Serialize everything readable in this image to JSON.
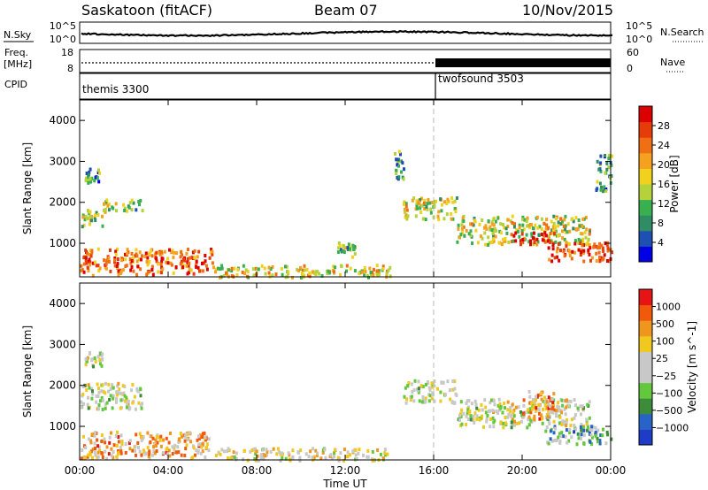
{
  "header": {
    "station": "Saskatoon (fitACF)",
    "beam": "Beam 07",
    "date": "10/Nov/2015"
  },
  "top_panels": {
    "nsky_label": "N.Sky",
    "nsky_ticks": [
      "10^5",
      "10^0"
    ],
    "nsearch_label": "N.Search",
    "freq_label_1": "Freq.",
    "freq_label_2": "[MHz]",
    "freq_ticks": [
      "18",
      "8"
    ],
    "nave_label": "Nave",
    "nave_ticks": [
      "60",
      "0"
    ],
    "cpid_label": "CPID",
    "cpid_programs": [
      {
        "name": "themis 3300",
        "start_hour": 0
      },
      {
        "name": "twofsound 3503",
        "start_hour": 16
      }
    ]
  },
  "colors": {
    "power_scale": [
      "#0000e6",
      "#1e50b4",
      "#2f8c64",
      "#38b050",
      "#b4d23c",
      "#f0d21e",
      "#f5a01e",
      "#f06e14",
      "#e63c0a",
      "#dc0000"
    ],
    "velocity_scale": [
      "#1e3cc8",
      "#2864c8",
      "#3c8c3c",
      "#64c83c",
      "#c8c8c8",
      "#c8c8c8",
      "#f0c81e",
      "#f0961e",
      "#f05a0a",
      "#e61414"
    ]
  },
  "chart_data": [
    {
      "type": "heatmap",
      "title": "",
      "xlabel": "Time UT",
      "ylabel": "Slant Range [km]",
      "xlim": [
        0,
        24
      ],
      "ylim": [
        180,
        4500
      ],
      "xticks": [
        "00:00",
        "04:00",
        "08:00",
        "12:00",
        "16:00",
        "20:00",
        "00:00"
      ],
      "yticks": [
        1000,
        2000,
        3000,
        4000
      ],
      "colorbar": {
        "label": "Power [dB]",
        "range": [
          0,
          32
        ],
        "ticks": [
          4,
          8,
          12,
          16,
          20,
          24,
          28
        ]
      },
      "scatter_regions": [
        {
          "t0": 0.2,
          "t1": 1.0,
          "r0": 2500,
          "r1": 2850,
          "level": 0.3
        },
        {
          "t0": 0.0,
          "t1": 1.0,
          "r0": 1450,
          "r1": 1850,
          "level": 0.45
        },
        {
          "t0": 1.0,
          "t1": 2.8,
          "r0": 1800,
          "r1": 2100,
          "level": 0.4
        },
        {
          "t0": 0.0,
          "t1": 6.0,
          "r0": 250,
          "r1": 900,
          "level": 0.75
        },
        {
          "t0": 6.0,
          "t1": 14.0,
          "r0": 200,
          "r1": 500,
          "level": 0.55
        },
        {
          "t0": 11.6,
          "t1": 12.4,
          "r0": 700,
          "r1": 1050,
          "level": 0.4
        },
        {
          "t0": 14.2,
          "t1": 14.6,
          "r0": 2600,
          "r1": 3300,
          "level": 0.3
        },
        {
          "t0": 14.6,
          "t1": 17.0,
          "r0": 1600,
          "r1": 2150,
          "level": 0.5
        },
        {
          "t0": 17.0,
          "t1": 23.0,
          "r0": 1000,
          "r1": 1700,
          "level": 0.5
        },
        {
          "t0": 19.5,
          "t1": 21.5,
          "r0": 1000,
          "r1": 1300,
          "level": 0.85
        },
        {
          "t0": 21.0,
          "t1": 24.0,
          "r0": 600,
          "r1": 1050,
          "level": 0.85
        },
        {
          "t0": 23.3,
          "t1": 24.0,
          "r0": 2300,
          "r1": 3200,
          "level": 0.3
        }
      ]
    },
    {
      "type": "heatmap",
      "title": "",
      "xlabel": "Time UT",
      "ylabel": "Slant Range [km]",
      "xlim": [
        0,
        24
      ],
      "ylim": [
        180,
        4500
      ],
      "xticks": [
        "00:00",
        "04:00",
        "08:00",
        "12:00",
        "16:00",
        "20:00",
        "00:00"
      ],
      "yticks": [
        1000,
        2000,
        3000,
        4000
      ],
      "colorbar": {
        "label": "Velocity [m s^-1]",
        "ticks": [
          "1000",
          "500",
          "100",
          "25",
          "−25",
          "−100",
          "−500",
          "−1000"
        ]
      },
      "scatter_regions": [
        {
          "t0": 0.2,
          "t1": 1.0,
          "r0": 2500,
          "r1": 2850,
          "level": 0.5
        },
        {
          "t0": 0.0,
          "t1": 2.8,
          "r0": 1450,
          "r1": 2100,
          "level": 0.5
        },
        {
          "t0": 0.0,
          "t1": 6.0,
          "r0": 250,
          "r1": 900,
          "level": 0.7
        },
        {
          "t0": 6.0,
          "t1": 14.0,
          "r0": 200,
          "r1": 500,
          "level": 0.55
        },
        {
          "t0": 14.6,
          "t1": 17.0,
          "r0": 1600,
          "r1": 2150,
          "level": 0.5
        },
        {
          "t0": 17.0,
          "t1": 23.0,
          "r0": 1000,
          "r1": 1700,
          "level": 0.5
        },
        {
          "t0": 20.0,
          "t1": 21.5,
          "r0": 1200,
          "r1": 1900,
          "level": 0.75
        },
        {
          "t0": 21.0,
          "t1": 24.0,
          "r0": 600,
          "r1": 1050,
          "level": 0.3
        }
      ]
    }
  ]
}
